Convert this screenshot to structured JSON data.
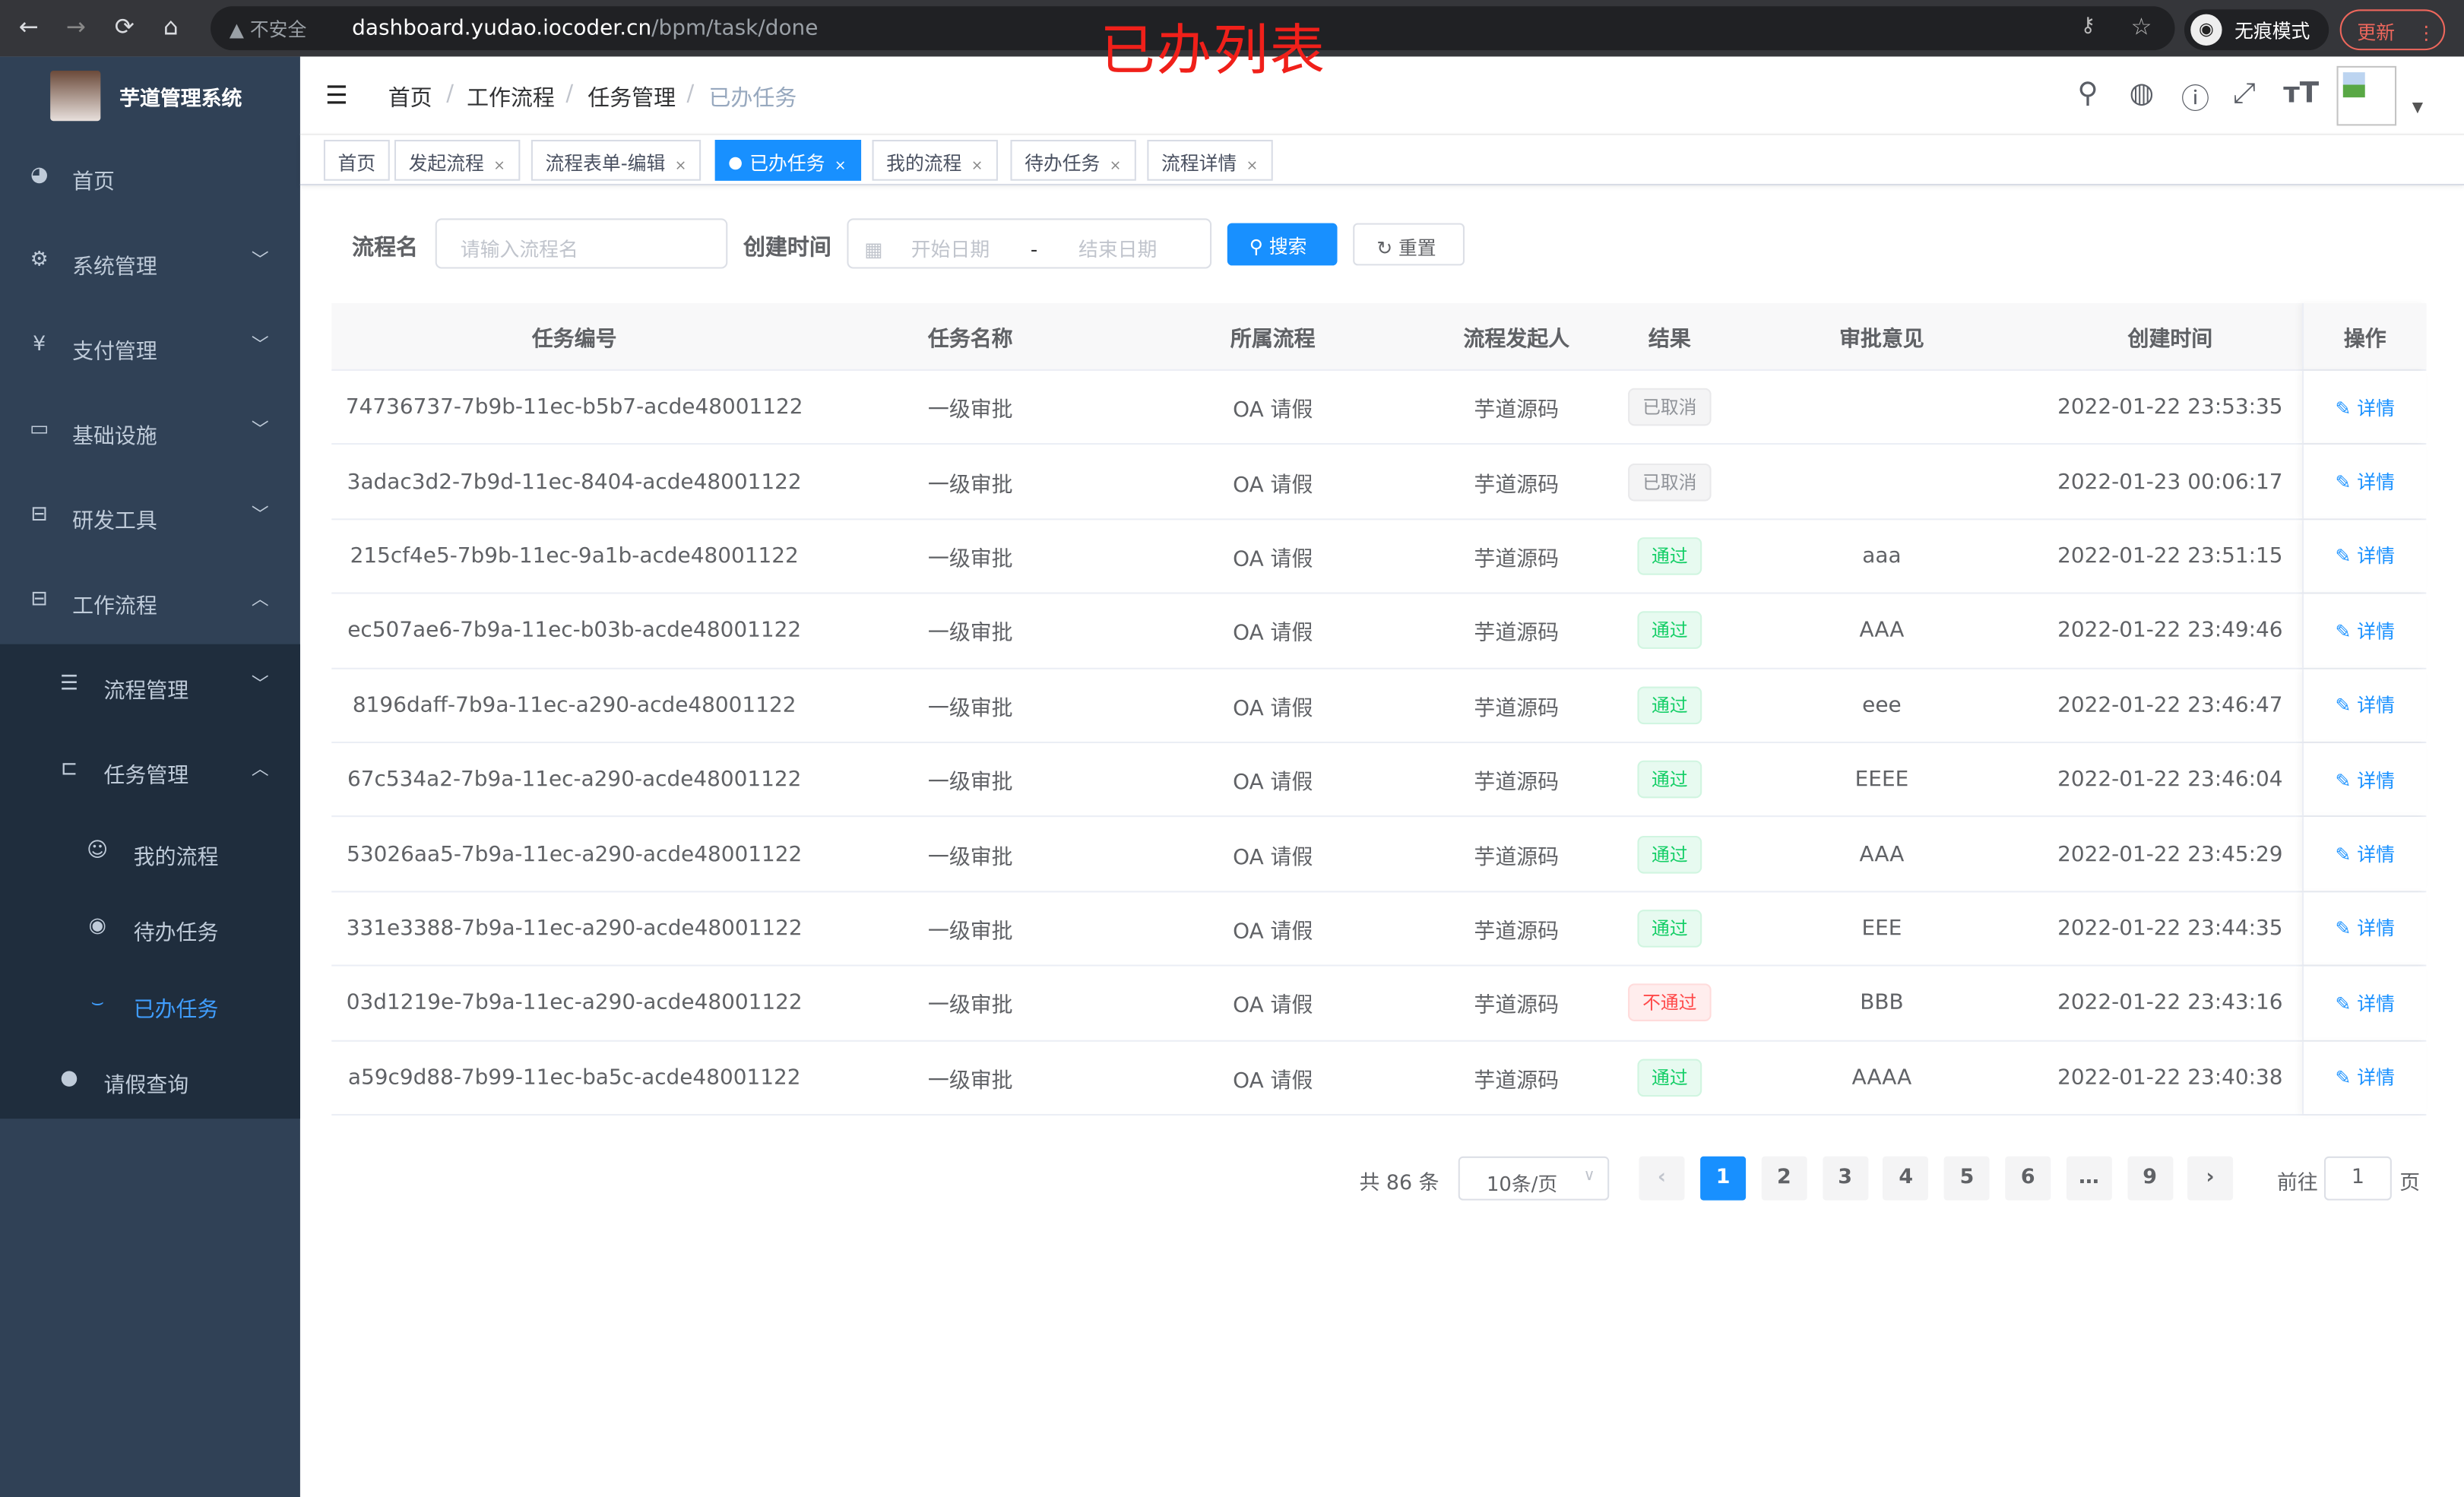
{
  "browser": {
    "back": "←",
    "forward": "→",
    "reload": "⟳",
    "home": "⌂",
    "security": "不安全",
    "url_host": "dashboard.yudao.iocoder.cn",
    "url_path": "/bpm/task/done",
    "incognito": "无痕模式",
    "update": "更新"
  },
  "annotation": "已办列表",
  "sidebar": {
    "brand": "芋道管理系统",
    "items": [
      {
        "label": "首页",
        "icon": "dashboard-icon"
      },
      {
        "label": "系统管理",
        "icon": "gear-icon"
      },
      {
        "label": "支付管理",
        "icon": "yen-icon"
      },
      {
        "label": "基础设施",
        "icon": "monitor-icon"
      },
      {
        "label": "研发工具",
        "icon": "toolbox-icon"
      },
      {
        "label": "工作流程",
        "icon": "toolbox-icon"
      },
      {
        "label": "流程管理",
        "icon": "list-icon"
      },
      {
        "label": "任务管理",
        "icon": "tree-icon"
      },
      {
        "label": "我的流程",
        "icon": "people-icon"
      },
      {
        "label": "待办任务",
        "icon": "eye-icon"
      },
      {
        "label": "已办任务",
        "icon": "eye-closed-icon"
      },
      {
        "label": "请假查询",
        "icon": "user-icon"
      }
    ],
    "active": "已办任务"
  },
  "breadcrumb": [
    "首页",
    "工作流程",
    "任务管理",
    "已办任务"
  ],
  "tags": [
    {
      "label": "首页"
    },
    {
      "label": "发起流程"
    },
    {
      "label": "流程表单-编辑"
    },
    {
      "label": "已办任务",
      "active": true
    },
    {
      "label": "我的流程"
    },
    {
      "label": "待办任务"
    },
    {
      "label": "流程详情"
    }
  ],
  "filters": {
    "name_label": "流程名",
    "name_placeholder": "请输入流程名",
    "time_label": "创建时间",
    "start_placeholder": "开始日期",
    "sep": "-",
    "end_placeholder": "结束日期",
    "search": "搜索",
    "reset": "重置"
  },
  "table": {
    "headers": [
      "任务编号",
      "任务名称",
      "所属流程",
      "流程发起人",
      "结果",
      "审批意见",
      "创建时间",
      "操作"
    ],
    "action": "详情",
    "rows": [
      [
        "74736737-7b9b-11ec-b5b7-acde48001122",
        "一级审批",
        "OA 请假",
        "芋道源码",
        "已取消",
        "",
        "2022-01-22 23:53:35"
      ],
      [
        "3adac3d2-7b9d-11ec-8404-acde48001122",
        "一级审批",
        "OA 请假",
        "芋道源码",
        "已取消",
        "",
        "2022-01-23 00:06:17"
      ],
      [
        "215cf4e5-7b9b-11ec-9a1b-acde48001122",
        "一级审批",
        "OA 请假",
        "芋道源码",
        "通过",
        "aaa",
        "2022-01-22 23:51:15"
      ],
      [
        "ec507ae6-7b9a-11ec-b03b-acde48001122",
        "一级审批",
        "OA 请假",
        "芋道源码",
        "通过",
        "AAA",
        "2022-01-22 23:49:46"
      ],
      [
        "8196daff-7b9a-11ec-a290-acde48001122",
        "一级审批",
        "OA 请假",
        "芋道源码",
        "通过",
        "eee",
        "2022-01-22 23:46:47"
      ],
      [
        "67c534a2-7b9a-11ec-a290-acde48001122",
        "一级审批",
        "OA 请假",
        "芋道源码",
        "通过",
        "EEEE",
        "2022-01-22 23:46:04"
      ],
      [
        "53026aa5-7b9a-11ec-a290-acde48001122",
        "一级审批",
        "OA 请假",
        "芋道源码",
        "通过",
        "AAA",
        "2022-01-22 23:45:29"
      ],
      [
        "331e3388-7b9a-11ec-a290-acde48001122",
        "一级审批",
        "OA 请假",
        "芋道源码",
        "通过",
        "EEE",
        "2022-01-22 23:44:35"
      ],
      [
        "03d1219e-7b9a-11ec-a290-acde48001122",
        "一级审批",
        "OA 请假",
        "芋道源码",
        "不通过",
        "BBB",
        "2022-01-22 23:43:16"
      ],
      [
        "a59c9d88-7b99-11ec-ba5c-acde48001122",
        "一级审批",
        "OA 请假",
        "芋道源码",
        "通过",
        "AAAA",
        "2022-01-22 23:40:38"
      ]
    ]
  },
  "pagination": {
    "total": "共 86 条",
    "page_size": "10条/页",
    "pages": [
      "1",
      "2",
      "3",
      "4",
      "5",
      "6",
      "…",
      "9"
    ],
    "current": "1",
    "goto_label": "前往",
    "goto_value": "1",
    "page_suffix": "页"
  },
  "colors": {
    "primary": "#1890ff",
    "sidebar": "#304156",
    "submenu": "#1f2d3d",
    "annotation": "#f0201a"
  }
}
